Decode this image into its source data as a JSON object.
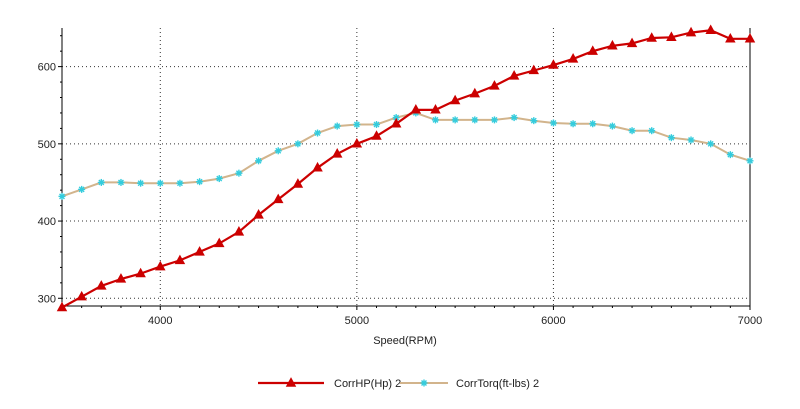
{
  "chart_data": {
    "type": "line",
    "xlabel": "Speed(RPM)",
    "ylabel": "",
    "xlim": [
      3500,
      7000
    ],
    "ylim": [
      290,
      650
    ],
    "xticks": [
      4000,
      5000,
      6000,
      7000
    ],
    "yticks": [
      300,
      400,
      500,
      600
    ],
    "grid": true,
    "legend_position": "bottom-center",
    "x": [
      3500,
      3600,
      3700,
      3800,
      3900,
      4000,
      4100,
      4200,
      4300,
      4400,
      4500,
      4600,
      4700,
      4800,
      4900,
      5000,
      5100,
      5200,
      5300,
      5400,
      5500,
      5600,
      5700,
      5800,
      5900,
      6000,
      6100,
      6200,
      6300,
      6400,
      6500,
      6600,
      6700,
      6800,
      6900,
      7000
    ],
    "series": [
      {
        "name": "CorrHP(Hp) 2",
        "color": "#cc0000",
        "marker": "triangle",
        "values": [
          288,
          302,
          316,
          325,
          332,
          341,
          349,
          360,
          371,
          386,
          408,
          428,
          448,
          469,
          487,
          500,
          510,
          526,
          544,
          544,
          556,
          565,
          575,
          588,
          595,
          602,
          610,
          620,
          627,
          630,
          637,
          638,
          644,
          647,
          636,
          636
        ]
      },
      {
        "name": "CorrTorq(ft-lbs) 2",
        "color": "#d2b48c",
        "marker_color": "#33ccdd",
        "marker": "star",
        "values": [
          432,
          441,
          450,
          450,
          449,
          449,
          449,
          451,
          455,
          462,
          478,
          491,
          500,
          514,
          523,
          525,
          525,
          534,
          540,
          531,
          531,
          531,
          531,
          534,
          530,
          527,
          526,
          526,
          523,
          517,
          517,
          508,
          505,
          500,
          486,
          478
        ]
      }
    ]
  }
}
